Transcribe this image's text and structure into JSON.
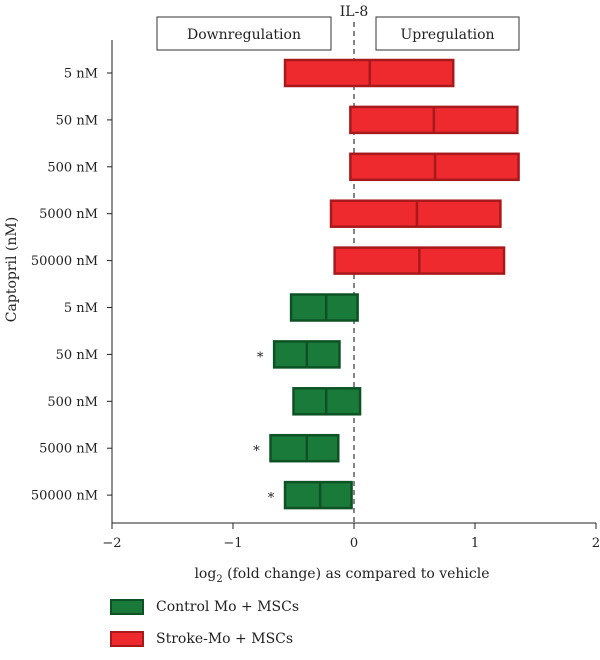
{
  "chart_data": {
    "type": "bar",
    "title": "IL-8",
    "annotation_left": "Downregulation",
    "annotation_right": "Upregulation",
    "xlabel_prefix": "log",
    "xlabel_sub": "2",
    "xlabel_suffix": " (fold change) as compared to vehicle",
    "ylabel": "Captopril (nM)",
    "xlim": [
      -2,
      2
    ],
    "xticks": [
      -2,
      -1,
      0,
      1,
      2
    ],
    "xtick_labels": [
      "−2",
      "−1",
      "0",
      "1",
      "2"
    ],
    "categories": [
      "5 nM",
      "50 nM",
      "500 nM",
      "5000 nM",
      "50000 nM",
      "5 nM",
      "50 nM",
      "500 nM",
      "5000 nM",
      "50000 nM"
    ],
    "series": [
      {
        "name": "Stroke-Mo + MSCs",
        "color": "#ee2a2e",
        "edge": "#a8191c",
        "rows": [
          0,
          1,
          2,
          3,
          4
        ],
        "low": [
          -0.57,
          -0.03,
          -0.03,
          -0.19,
          -0.16
        ],
        "mid": [
          0.13,
          0.66,
          0.67,
          0.52,
          0.54
        ],
        "high": [
          0.82,
          1.35,
          1.36,
          1.21,
          1.24
        ],
        "significant": [
          false,
          false,
          false,
          false,
          false
        ]
      },
      {
        "name": "Control Mo + MSCs",
        "color": "#1a7a3a",
        "edge": "#0d5224",
        "rows": [
          5,
          6,
          7,
          8,
          9
        ],
        "low": [
          -0.52,
          -0.66,
          -0.5,
          -0.69,
          -0.57
        ],
        "mid": [
          -0.23,
          -0.39,
          -0.23,
          -0.39,
          -0.28
        ],
        "high": [
          0.03,
          -0.12,
          0.05,
          -0.13,
          -0.02
        ],
        "significant": [
          false,
          true,
          false,
          true,
          true
        ]
      }
    ],
    "significance_marker": "*",
    "legend": [
      {
        "label": "Control Mo + MSCs",
        "color": "#1a7a3a",
        "edge": "#0d5224"
      },
      {
        "label": "Stroke-Mo + MSCs",
        "color": "#ee2a2e",
        "edge": "#a8191c"
      }
    ],
    "legend_placement": "bottom-left",
    "grid": false,
    "zero_line": "dashed"
  }
}
